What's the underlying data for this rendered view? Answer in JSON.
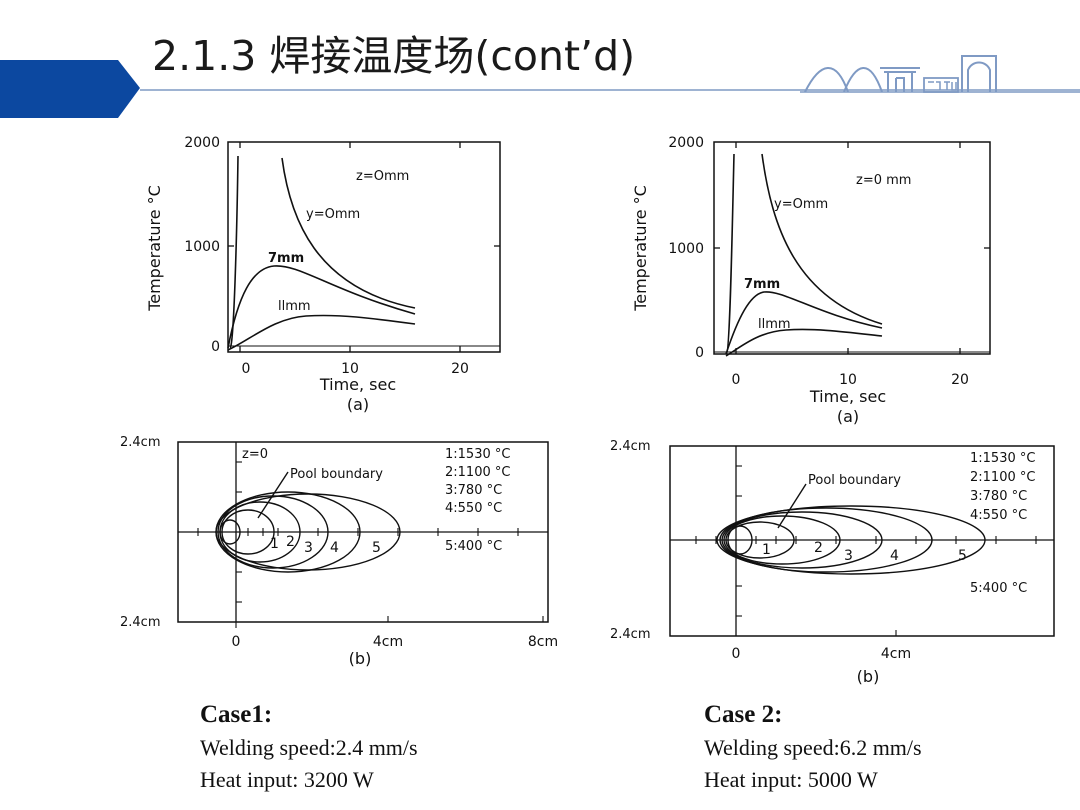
{
  "slide": {
    "title": "2.1.3 焊接温度场(cont’d)"
  },
  "colors": {
    "accent": "#0c48a0",
    "line": "#7f9ac4"
  },
  "figures": {
    "left_top": {
      "ylabel": "Temperature °C",
      "xlabel": "Time, sec",
      "sublabel": "(a)",
      "y_ticks": [
        "2000",
        "1000",
        "0"
      ],
      "x_ticks": [
        "0",
        "10",
        "20"
      ],
      "annotation": "z=Omm",
      "curve_labels": [
        "y=Omm",
        "7mm",
        "llmm"
      ]
    },
    "right_top": {
      "ylabel": "Temperature °C",
      "xlabel": "Time, sec",
      "sublabel": "(a)",
      "y_ticks": [
        "2000",
        "1000",
        "0"
      ],
      "x_ticks": [
        "0",
        "10",
        "20"
      ],
      "annotation": "z=0 mm",
      "curve_labels": [
        "y=Omm",
        "7mm",
        "llmm"
      ]
    },
    "left_bottom": {
      "y_top": "2.4cm",
      "y_bottom": "2.4cm",
      "x_ticks": [
        "0",
        "4cm",
        "8cm"
      ],
      "sublabel": "(b)",
      "z_label": "z=0",
      "pool": "Pool boundary",
      "legend": [
        "1:1530 °C",
        "2:1100 °C",
        "3:780 °C",
        "4:550 °C"
      ],
      "legend5": "5:400 °C",
      "contour_nums": [
        "1",
        "2",
        "3",
        "4",
        "5"
      ]
    },
    "right_bottom": {
      "y_top": "2.4cm",
      "y_bottom": "2.4cm",
      "x_ticks": [
        "0",
        "4cm"
      ],
      "sublabel": "(b)",
      "pool": "Pool  boundary",
      "legend": [
        "1:1530 °C",
        "2:1100 °C",
        "3:780 °C",
        "4:550 °C"
      ],
      "legend5": "5:400 °C",
      "contour_nums": [
        "1",
        "2",
        "3",
        "4",
        "5"
      ]
    }
  },
  "cases": [
    {
      "title": "Case1:",
      "speed": "Welding speed:2.4 mm/s",
      "heat": "Heat input: 3200 W"
    },
    {
      "title": "Case 2:",
      "speed": "Welding speed:6.2 mm/s",
      "heat": "Heat input: 5000 W"
    }
  ]
}
